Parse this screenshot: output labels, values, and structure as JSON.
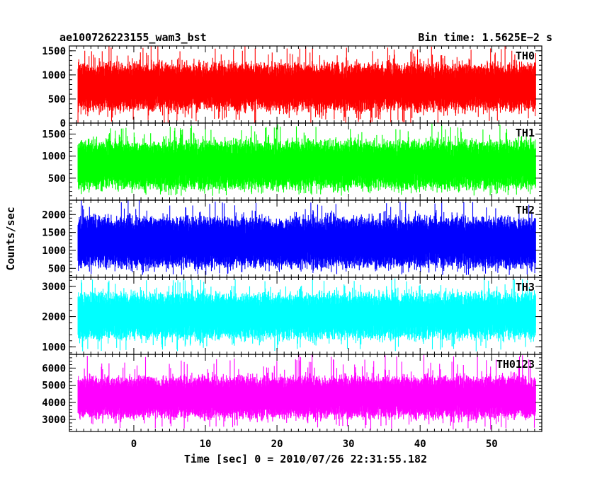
{
  "header": {
    "object_name": "ae100726223155_wam3_bst",
    "bin_time": "Bin time: 1.5625E−2 s"
  },
  "chart_data": {
    "type": "line",
    "title": "ae100726223155_wam3_bst",
    "subtitle": "Bin time: 1.5625E−2 s",
    "xlabel": "Time [sec] 0 = 2010/07/26 22:31:55.182",
    "ylabel": "Counts/sec",
    "xlim": [
      -9,
      57
    ],
    "x_data_range": [
      -7.8,
      56.2
    ],
    "x_ticks": [
      0,
      10,
      20,
      30,
      40,
      50
    ],
    "grid": false,
    "legend": "none",
    "panels": [
      {
        "name": "TH0",
        "color": "#ff0000",
        "ylim": [
          0,
          1600
        ],
        "y_ticks": [
          0,
          500,
          1000,
          1500
        ],
        "y_tick_labels": [
          "0",
          "500",
          "1000",
          "1500"
        ],
        "typical_range": [
          350,
          1150
        ],
        "mean": 750,
        "min": 0,
        "max": 1600
      },
      {
        "name": "TH1",
        "color": "#00ff00",
        "ylim": [
          0,
          1750
        ],
        "y_ticks": [
          500,
          1000,
          1500
        ],
        "y_tick_labels": [
          "500",
          "1000",
          "1500"
        ],
        "typical_range": [
          350,
          1250
        ],
        "mean": 750,
        "min": 100,
        "max": 1750
      },
      {
        "name": "TH2",
        "color": "#0000ff",
        "ylim": [
          250,
          2400
        ],
        "y_ticks": [
          500,
          1000,
          1500,
          2000
        ],
        "y_tick_labels": [
          "500",
          "1000",
          "1500",
          "2000"
        ],
        "typical_range": [
          650,
          1800
        ],
        "mean": 1200,
        "min": 300,
        "max": 2400
      },
      {
        "name": "TH3",
        "color": "#00ffff",
        "ylim": [
          750,
          3300
        ],
        "y_ticks": [
          1000,
          2000,
          3000
        ],
        "y_tick_labels": [
          "1000",
          "2000",
          "3000"
        ],
        "typical_range": [
          1400,
          2650
        ],
        "mean": 1950,
        "min": 850,
        "max": 3300
      },
      {
        "name": "TH0123",
        "color": "#ff00ff",
        "ylim": [
          2300,
          6800
        ],
        "y_ticks": [
          3000,
          4000,
          5000,
          6000
        ],
        "y_tick_labels": [
          "3000",
          "4000",
          "5000",
          "6000"
        ],
        "typical_range": [
          3300,
          5300
        ],
        "mean": 4200,
        "min": 2400,
        "max": 6800
      }
    ]
  }
}
